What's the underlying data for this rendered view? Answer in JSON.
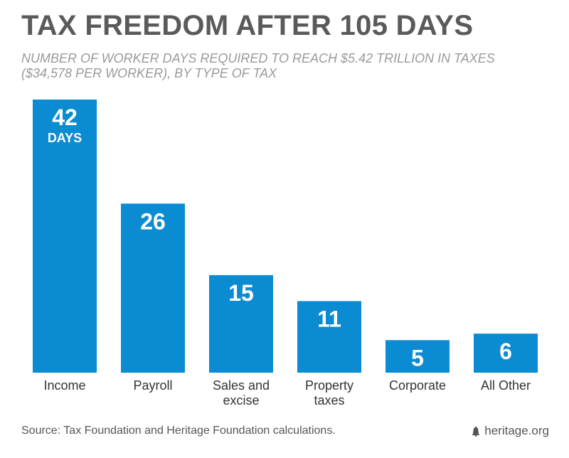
{
  "title": "TAX FREEDOM AFTER 105 DAYS",
  "subtitle": "NUMBER OF WORKER DAYS REQUIRED TO REACH $5.42 TRILLION IN TAXES ($34,578 PER WORKER), BY TYPE OF TAX",
  "footer": {
    "source": "Source: Tax Foundation and Heritage Foundation calculations.",
    "brand": "heritage.org",
    "brand_icon": "liberty-bell-icon"
  },
  "colors": {
    "bar": "#0a8bd2",
    "title": "#5a5a5a",
    "subtitle": "#9a9a9a"
  },
  "chart_data": {
    "type": "bar",
    "title": "TAX FREEDOM AFTER 105 DAYS",
    "subtitle": "NUMBER OF WORKER DAYS REQUIRED TO REACH $5.42 TRILLION IN TAXES ($34,578 PER WORKER), BY TYPE OF TAX",
    "categories": [
      [
        "Income"
      ],
      [
        "Payroll"
      ],
      [
        "Sales and",
        "excise"
      ],
      [
        "Property",
        "taxes"
      ],
      [
        "Corporate"
      ],
      [
        "All Other"
      ]
    ],
    "values": [
      42,
      26,
      15,
      11,
      5,
      6
    ],
    "first_value_unit": "DAYS",
    "ylim": [
      0,
      42
    ],
    "grid": false
  }
}
